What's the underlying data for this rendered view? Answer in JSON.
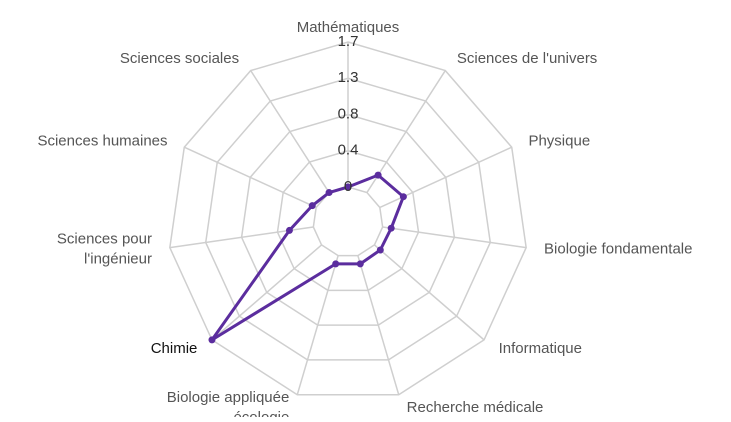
{
  "chart_data": {
    "type": "radar",
    "categories": [
      [
        "Mathématiques"
      ],
      [
        "Sciences de l'univers"
      ],
      [
        "Physique"
      ],
      [
        "Biologie fondamentale"
      ],
      [
        "Informatique"
      ],
      [
        "Recherche médicale"
      ],
      [
        "Biologie appliquée",
        "- écologie"
      ],
      [
        "Chimie"
      ],
      [
        "Sciences pour",
        "l'ingénieur"
      ],
      [
        "Sciences humaines"
      ],
      [
        "Sciences sociales"
      ]
    ],
    "series": [
      {
        "color": "#5b2d9e",
        "values": [
          0,
          0.24,
          0.3,
          0.1,
          0.09,
          0.1,
          0.1,
          1.68,
          0.28,
          0.05,
          0
        ]
      }
    ],
    "ylim": [
      0,
      1.68
    ],
    "yticks": [
      0,
      {
        "value": 0.42,
        "label": "0.4"
      },
      {
        "value": 0.84,
        "label": "0.8"
      },
      {
        "value": 1.26,
        "label": "1.3"
      },
      {
        "value": 1.68,
        "label": "1.7"
      }
    ],
    "grid": true
  }
}
